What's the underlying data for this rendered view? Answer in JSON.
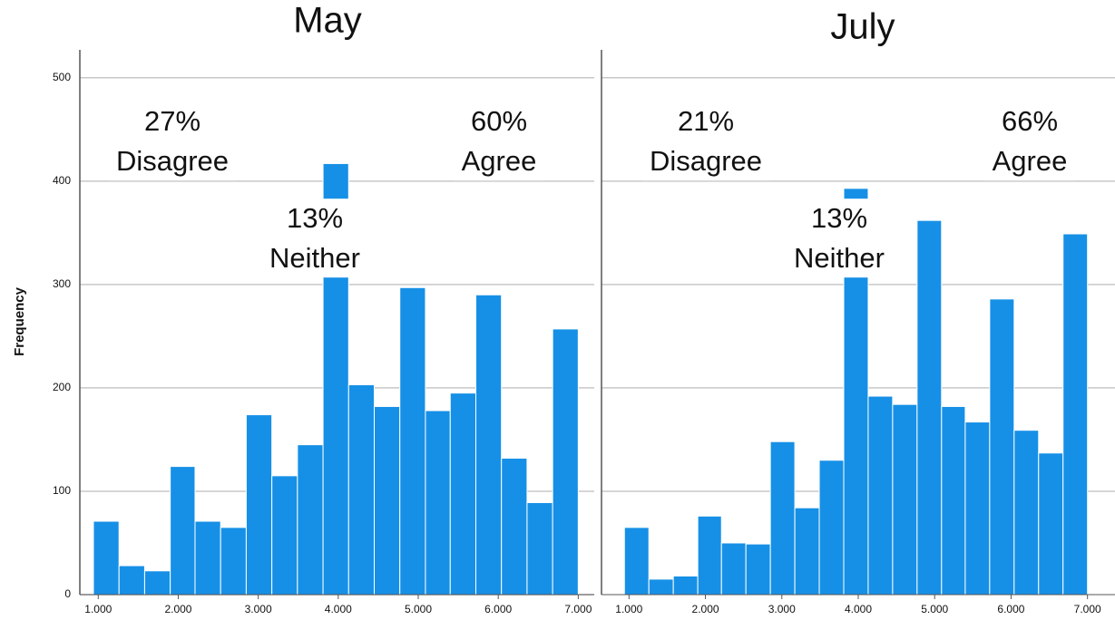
{
  "chart_data": [
    {
      "type": "histogram",
      "title": "May",
      "ylabel": "Frequency",
      "color": "#1690e6",
      "bins": [
        0.94,
        1.26,
        1.58,
        1.9,
        2.21,
        2.53,
        2.85,
        3.17,
        3.49,
        3.81,
        4.13,
        4.45,
        4.77,
        5.09,
        5.4,
        5.72,
        6.04,
        6.36,
        6.68,
        7.0
      ],
      "values": [
        71,
        28,
        23,
        124,
        71,
        65,
        174,
        115,
        145,
        417,
        203,
        182,
        297,
        178,
        195,
        290,
        132,
        89,
        257
      ],
      "xlim": [
        0.77,
        7.2
      ],
      "ylim": [
        0,
        527
      ],
      "xticks": [
        {
          "value": 1,
          "label": "1.000"
        },
        {
          "value": 2,
          "label": "2.000"
        },
        {
          "value": 3,
          "label": "3.000"
        },
        {
          "value": 4,
          "label": "4.000"
        },
        {
          "value": 5,
          "label": "5.000"
        },
        {
          "value": 6,
          "label": "6.000"
        },
        {
          "value": 7,
          "label": "7.000"
        }
      ],
      "yticks": [
        0,
        100,
        200,
        300,
        400,
        500
      ],
      "grid": true,
      "annotations": [
        {
          "lines": [
            "27%",
            "Disagree"
          ]
        },
        {
          "lines": [
            "13%",
            "Neither"
          ]
        },
        {
          "lines": [
            "60%",
            "Agree"
          ]
        }
      ]
    },
    {
      "type": "histogram",
      "title": "July",
      "color": "#1690e6",
      "bins": [
        0.94,
        1.26,
        1.58,
        1.9,
        2.21,
        2.53,
        2.85,
        3.17,
        3.49,
        3.81,
        4.13,
        4.45,
        4.77,
        5.09,
        5.4,
        5.72,
        6.04,
        6.36,
        6.68,
        7.0
      ],
      "values": [
        65,
        15,
        18,
        76,
        50,
        49,
        148,
        84,
        130,
        393,
        192,
        184,
        362,
        182,
        167,
        286,
        159,
        137,
        349
      ],
      "xlim": [
        0.64,
        7.36
      ],
      "ylim": [
        0,
        527
      ],
      "xticks": [
        {
          "value": 1,
          "label": "1.000"
        },
        {
          "value": 2,
          "label": "2.000"
        },
        {
          "value": 3,
          "label": "3.000"
        },
        {
          "value": 4,
          "label": "4.000"
        },
        {
          "value": 5,
          "label": "5.000"
        },
        {
          "value": 6,
          "label": "6.000"
        },
        {
          "value": 7,
          "label": "7.000"
        }
      ],
      "yticks": [
        100,
        200,
        300,
        400,
        500
      ],
      "grid": true,
      "annotations": [
        {
          "lines": [
            "21%",
            "Disagree"
          ]
        },
        {
          "lines": [
            "13%",
            "Neither"
          ]
        },
        {
          "lines": [
            "66%",
            "Agree"
          ]
        }
      ]
    }
  ]
}
